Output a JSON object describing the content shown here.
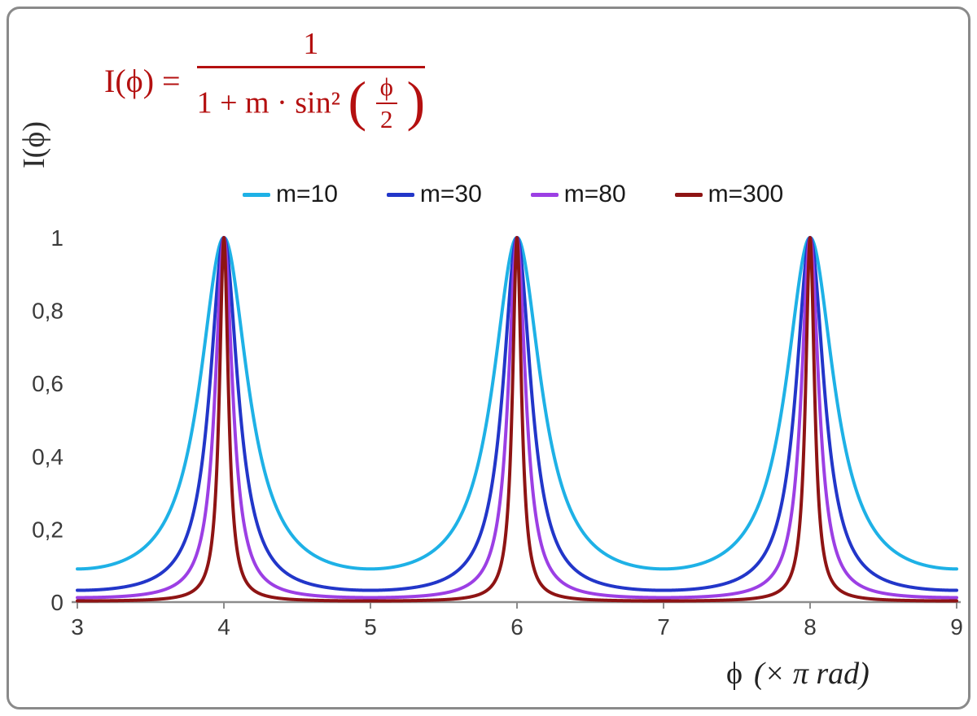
{
  "chart_data": {
    "type": "line",
    "title": "",
    "function": "I(x) = 1 / (1 + m · sin²(x·π/2)) where x is in units of π rad",
    "xlabel": "ϕ (× π rad)",
    "ylabel": "I(ϕ)",
    "x_range": [
      3,
      9
    ],
    "y_range": [
      0,
      1
    ],
    "x_ticks": [
      "3",
      "4",
      "5",
      "6",
      "7",
      "8",
      "9"
    ],
    "y_ticks": [
      "0",
      "0,2",
      "0,4",
      "0,6",
      "0,8",
      "1"
    ],
    "y_tick_values": [
      0,
      0.2,
      0.4,
      0.6,
      0.8,
      1
    ],
    "peaks_at_x": [
      4,
      6,
      8
    ],
    "grid": "off",
    "legend_position": "top-center",
    "axis_color": "#8c8c8c",
    "series": [
      {
        "name": "m=10",
        "m": 10,
        "color": "#1eb1e6",
        "baseline_value": 0.0909
      },
      {
        "name": "m=30",
        "m": 30,
        "color": "#2236c9",
        "baseline_value": 0.0323
      },
      {
        "name": "m=80",
        "m": 80,
        "color": "#9c3fe4",
        "baseline_value": 0.0123
      },
      {
        "name": "m=300",
        "m": 300,
        "color": "#8e1414",
        "baseline_value": 0.0033
      }
    ]
  },
  "formula": {
    "lhs": "I(ϕ) =",
    "numerator": "1",
    "denominator_prefix": "1 + m · sin²",
    "open_paren": "(",
    "close_paren": ")",
    "inner_numerator": "ϕ",
    "inner_denominator": "2",
    "color": "#b41010"
  },
  "x_axis_label": {
    "phi": "ϕ",
    "rest": "(× π rad)"
  },
  "y_axis_label": "I(ϕ)"
}
